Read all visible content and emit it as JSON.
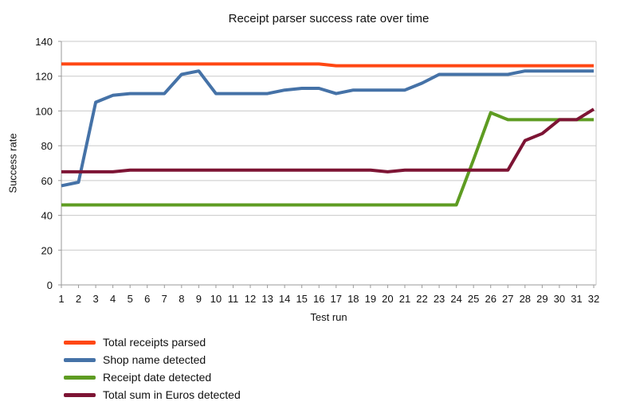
{
  "chart_data": {
    "type": "line",
    "title": "Receipt parser success rate over time",
    "xlabel": "Test run",
    "ylabel": "Success rate",
    "x": [
      1,
      2,
      3,
      4,
      5,
      6,
      7,
      8,
      9,
      10,
      11,
      12,
      13,
      14,
      15,
      16,
      17,
      18,
      19,
      20,
      21,
      22,
      23,
      24,
      25,
      26,
      27,
      28,
      29,
      30,
      31,
      32
    ],
    "ylim": [
      0,
      140
    ],
    "ytick_step": 20,
    "grid": true,
    "legend_position": "bottom-left",
    "background_color": "#FFFFFF",
    "grid_color": "#C9C9C9",
    "axis_color": "#9A9A9A",
    "text_color": "#111111",
    "series": [
      {
        "name": "Total receipts parsed",
        "color": "#FF4713",
        "values": [
          127,
          127,
          127,
          127,
          127,
          127,
          127,
          127,
          127,
          127,
          127,
          127,
          127,
          127,
          127,
          127,
          126,
          126,
          126,
          126,
          126,
          126,
          126,
          126,
          126,
          126,
          126,
          126,
          126,
          126,
          126,
          126
        ]
      },
      {
        "name": "Shop name detected",
        "color": "#4572A7",
        "values": [
          57,
          59,
          105,
          109,
          110,
          110,
          110,
          121,
          123,
          110,
          110,
          110,
          110,
          112,
          113,
          113,
          110,
          112,
          112,
          112,
          112,
          116,
          121,
          121,
          121,
          121,
          121,
          123,
          123,
          123,
          123,
          123
        ]
      },
      {
        "name": "Receipt date detected",
        "color": "#5E9C22",
        "values": [
          46,
          46,
          46,
          46,
          46,
          46,
          46,
          46,
          46,
          46,
          46,
          46,
          46,
          46,
          46,
          46,
          46,
          46,
          46,
          46,
          46,
          46,
          46,
          46,
          72,
          99,
          95,
          95,
          95,
          95,
          95,
          95
        ]
      },
      {
        "name": "Total sum in Euros detected",
        "color": "#7D1434",
        "values": [
          65,
          65,
          65,
          65,
          66,
          66,
          66,
          66,
          66,
          66,
          66,
          66,
          66,
          66,
          66,
          66,
          66,
          66,
          66,
          65,
          66,
          66,
          66,
          66,
          66,
          66,
          66,
          83,
          87,
          95,
          95,
          101
        ]
      }
    ]
  }
}
